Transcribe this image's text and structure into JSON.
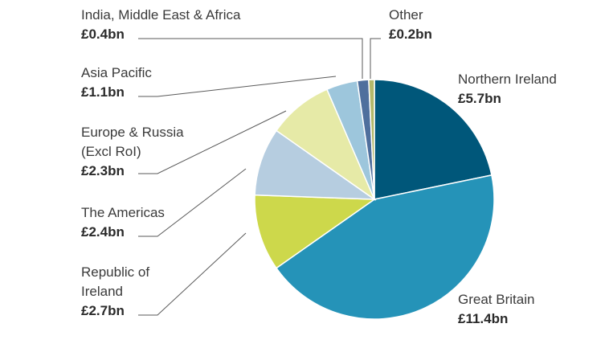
{
  "chart_data": {
    "type": "pie",
    "title": "",
    "slices": [
      {
        "name": "Northern Ireland",
        "name_lines": [
          "Northern Ireland"
        ],
        "value": 5.7,
        "label": "£5.7bn",
        "color": "#00577a"
      },
      {
        "name": "Great Britain",
        "name_lines": [
          "Great Britain"
        ],
        "value": 11.4,
        "label": "£11.4bn",
        "color": "#2593b8"
      },
      {
        "name": "Republic of Ireland",
        "name_lines": [
          "Republic of",
          "Ireland"
        ],
        "value": 2.7,
        "label": "£2.7bn",
        "color": "#cdd84b"
      },
      {
        "name": "The Americas",
        "name_lines": [
          "The Americas"
        ],
        "value": 2.4,
        "label": "£2.4bn",
        "color": "#b6cde0"
      },
      {
        "name": "Europe & Russia (Excl RoI)",
        "name_lines": [
          "Europe & Russia",
          "(Excl RoI)"
        ],
        "value": 2.3,
        "label": "£2.3bn",
        "color": "#e6eaa7"
      },
      {
        "name": "Asia Pacific",
        "name_lines": [
          "Asia Pacific"
        ],
        "value": 1.1,
        "label": "£1.1bn",
        "color": "#9dc6dc"
      },
      {
        "name": "India, Middle East & Africa",
        "name_lines": [
          "India, Middle East & Africa"
        ],
        "value": 0.4,
        "label": "£0.4bn",
        "color": "#4f6f9d"
      },
      {
        "name": "Other",
        "name_lines": [
          "Other"
        ],
        "value": 0.2,
        "label": "£0.2bn",
        "color": "#b3b86a"
      }
    ],
    "legend": "none"
  }
}
